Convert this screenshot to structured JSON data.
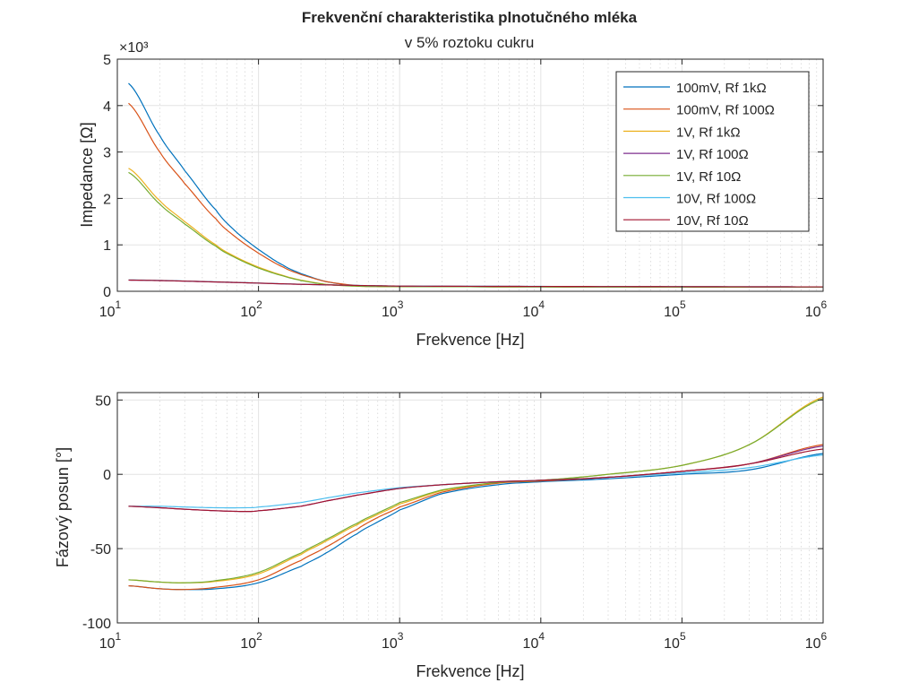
{
  "title": "Frekvenční charakteristika plnotučného mléka",
  "subtitle": "v 5% roztoku cukru",
  "legend": [
    "100mV, Rf 1kΩ",
    "100mV, Rf 100Ω",
    "1V, Rf 1kΩ",
    "1V, Rf 100Ω",
    "1V, Rf 10Ω",
    "10V, Rf 100Ω",
    "10V, Rf 10Ω"
  ],
  "chart_data": [
    {
      "type": "line",
      "xscale": "log",
      "xlabel": "Frekvence [Hz]",
      "ylabel": "Impedance [Ω]",
      "y_exponent_label": "×10³",
      "xlim": [
        10,
        1000000
      ],
      "ylim": [
        0,
        5000
      ],
      "xticks": [
        10,
        100,
        1000,
        10000,
        100000,
        1000000
      ],
      "xtick_labels": [
        {
          "base": "10",
          "exp": "1"
        },
        {
          "base": "10",
          "exp": "2"
        },
        {
          "base": "10",
          "exp": "3"
        },
        {
          "base": "10",
          "exp": "4"
        },
        {
          "base": "10",
          "exp": "5"
        },
        {
          "base": "10",
          "exp": "6"
        }
      ],
      "yticks": [
        0,
        1000,
        2000,
        3000,
        4000,
        5000
      ],
      "ytick_labels": [
        "0",
        "1",
        "2",
        "3",
        "4",
        "5"
      ],
      "grid": true,
      "legend_position": "top-right",
      "series": [
        {
          "name": "100mV, Rf 1kΩ",
          "color": "#0072BD",
          "x": [
            12,
            20,
            30,
            50,
            70,
            100,
            150,
            200,
            300,
            500,
            700,
            1000,
            10000,
            100000,
            1000000
          ],
          "y": [
            4480,
            3350,
            2600,
            1750,
            1270,
            900,
            560,
            380,
            210,
            120,
            105,
            100,
            95,
            90,
            90
          ]
        },
        {
          "name": "100mV, Rf 100Ω",
          "color": "#D95319",
          "x": [
            12,
            20,
            30,
            50,
            70,
            100,
            150,
            200,
            300,
            500,
            700,
            1000,
            10000,
            100000,
            1000000
          ],
          "y": [
            4050,
            3000,
            2320,
            1560,
            1150,
            820,
            520,
            360,
            210,
            125,
            108,
            100,
            95,
            90,
            90
          ]
        },
        {
          "name": "1V, Rf 1kΩ",
          "color": "#EDB120",
          "x": [
            12,
            20,
            30,
            50,
            70,
            100,
            150,
            200,
            300,
            500,
            700,
            1000,
            10000,
            100000,
            1000000
          ],
          "y": [
            2650,
            1950,
            1500,
            1000,
            730,
            520,
            340,
            240,
            150,
            110,
            102,
            100,
            95,
            90,
            90
          ]
        },
        {
          "name": "1V, Rf 100Ω",
          "color": "#7E2F8E",
          "x": [
            12,
            20,
            30,
            50,
            70,
            100,
            150,
            200,
            300,
            500,
            700,
            1000,
            10000,
            100000,
            1000000
          ],
          "y": [
            240,
            230,
            218,
            200,
            188,
            175,
            160,
            150,
            138,
            125,
            118,
            110,
            105,
            100,
            95
          ]
        },
        {
          "name": "1V, Rf 10Ω",
          "color": "#77AC30",
          "x": [
            12,
            20,
            30,
            50,
            70,
            100,
            150,
            200,
            300,
            500,
            700,
            1000,
            10000,
            100000,
            1000000
          ],
          "y": [
            2560,
            1880,
            1450,
            970,
            710,
            500,
            330,
            232,
            148,
            110,
            102,
            100,
            95,
            90,
            90
          ]
        },
        {
          "name": "10V, Rf 100Ω",
          "color": "#4DBEEE",
          "x": [
            12,
            20,
            30,
            50,
            70,
            100,
            150,
            200,
            300,
            500,
            700,
            1000,
            10000,
            100000,
            1000000
          ],
          "y": [
            245,
            235,
            222,
            205,
            192,
            178,
            162,
            152,
            140,
            127,
            120,
            112,
            106,
            100,
            95
          ]
        },
        {
          "name": "10V, Rf 10Ω",
          "color": "#A2142F",
          "x": [
            12,
            20,
            30,
            50,
            70,
            100,
            150,
            200,
            300,
            500,
            700,
            1000,
            10000,
            100000,
            1000000
          ],
          "y": [
            242,
            232,
            220,
            202,
            190,
            176,
            161,
            151,
            139,
            126,
            119,
            111,
            105,
            100,
            95
          ]
        }
      ]
    },
    {
      "type": "line",
      "xscale": "log",
      "xlabel": "Frekvence [Hz]",
      "ylabel": "Fázový posun [°]",
      "xlim": [
        10,
        1000000
      ],
      "ylim": [
        -100,
        55
      ],
      "xticks": [
        10,
        100,
        1000,
        10000,
        100000,
        1000000
      ],
      "xtick_labels": [
        {
          "base": "10",
          "exp": "1"
        },
        {
          "base": "10",
          "exp": "2"
        },
        {
          "base": "10",
          "exp": "3"
        },
        {
          "base": "10",
          "exp": "4"
        },
        {
          "base": "10",
          "exp": "5"
        },
        {
          "base": "10",
          "exp": "6"
        }
      ],
      "yticks": [
        -100,
        -50,
        0,
        50
      ],
      "ytick_labels": [
        "-100",
        "-50",
        "0",
        "50"
      ],
      "grid": true,
      "series": [
        {
          "name": "100mV, Rf 1kΩ",
          "color": "#0072BD",
          "x": [
            12,
            20,
            30,
            50,
            100,
            200,
            300,
            500,
            700,
            1000,
            2000,
            5000,
            10000,
            30000,
            100000,
            300000,
            1000000
          ],
          "y": [
            -75,
            -77,
            -77.5,
            -77,
            -73,
            -62,
            -53,
            -40,
            -32,
            -24,
            -13,
            -7,
            -5,
            -3,
            0,
            3,
            14
          ]
        },
        {
          "name": "100mV, Rf 100Ω",
          "color": "#D95319",
          "x": [
            12,
            20,
            30,
            50,
            100,
            200,
            300,
            500,
            700,
            1000,
            2000,
            5000,
            10000,
            30000,
            100000,
            300000,
            1000000
          ],
          "y": [
            -75,
            -77,
            -77.5,
            -76,
            -71,
            -58,
            -49,
            -37,
            -29,
            -22,
            -12,
            -6,
            -4.5,
            -2,
            2,
            7,
            20
          ]
        },
        {
          "name": "1V, Rf 1kΩ",
          "color": "#EDB120",
          "x": [
            12,
            20,
            30,
            50,
            100,
            200,
            300,
            500,
            700,
            1000,
            2000,
            5000,
            10000,
            30000,
            100000,
            300000,
            1000000
          ],
          "y": [
            -71,
            -72.5,
            -73,
            -72,
            -67,
            -54,
            -45,
            -34,
            -27,
            -20,
            -11,
            -5.5,
            -4,
            0,
            6,
            20,
            52
          ]
        },
        {
          "name": "1V, Rf 100Ω",
          "color": "#7E2F8E",
          "x": [
            12,
            20,
            30,
            50,
            80,
            100,
            200,
            300,
            500,
            1000,
            2000,
            5000,
            10000,
            30000,
            100000,
            300000,
            1000000
          ],
          "y": [
            -21.5,
            -22.5,
            -23.5,
            -24.5,
            -25,
            -24.5,
            -21.5,
            -18,
            -14,
            -9.5,
            -7,
            -5,
            -4,
            -2,
            2,
            7,
            19
          ]
        },
        {
          "name": "1V, Rf 10Ω",
          "color": "#77AC30",
          "x": [
            12,
            20,
            30,
            50,
            100,
            200,
            300,
            500,
            700,
            1000,
            2000,
            5000,
            10000,
            30000,
            100000,
            300000,
            1000000
          ],
          "y": [
            -71,
            -72.5,
            -73,
            -71.5,
            -66,
            -53,
            -44,
            -33,
            -26,
            -19,
            -10.5,
            -5.5,
            -4,
            0,
            6,
            20,
            51
          ]
        },
        {
          "name": "10V, Rf 100Ω",
          "color": "#4DBEEE",
          "x": [
            12,
            20,
            30,
            50,
            80,
            100,
            200,
            300,
            500,
            1000,
            2000,
            5000,
            10000,
            30000,
            100000,
            300000,
            1000000
          ],
          "y": [
            -21.5,
            -21.5,
            -22,
            -22.5,
            -22.5,
            -22,
            -19,
            -16,
            -12.5,
            -9,
            -7,
            -5,
            -4,
            -2,
            1,
            4.5,
            13
          ]
        },
        {
          "name": "10V, Rf 10Ω",
          "color": "#A2142F",
          "x": [
            12,
            20,
            30,
            50,
            80,
            100,
            200,
            300,
            500,
            1000,
            2000,
            5000,
            10000,
            30000,
            100000,
            300000,
            1000000
          ],
          "y": [
            -21.5,
            -22.5,
            -23.5,
            -24.5,
            -25,
            -24.5,
            -21.5,
            -18,
            -14,
            -9.5,
            -7,
            -5,
            -4,
            -2,
            2,
            7,
            17
          ]
        }
      ]
    }
  ]
}
